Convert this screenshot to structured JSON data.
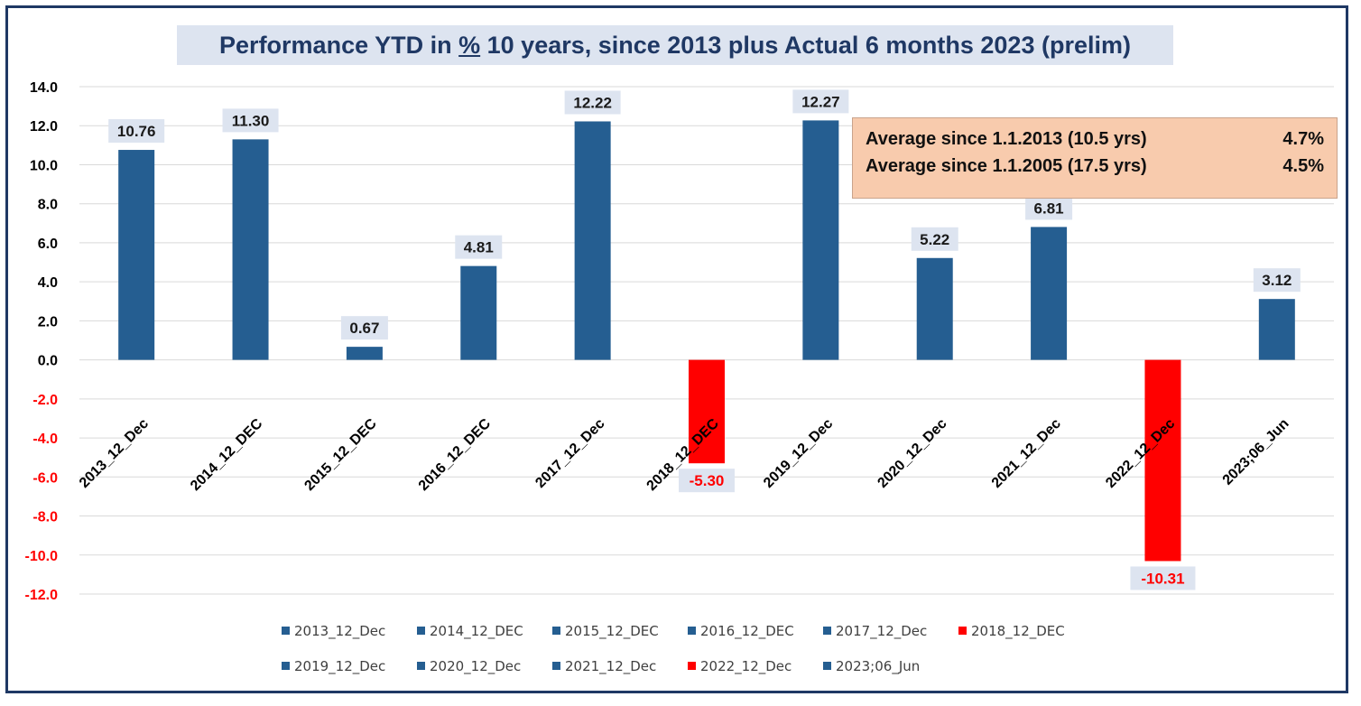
{
  "chart_data": {
    "type": "bar",
    "title_parts": [
      "Performance YTD in ",
      "%",
      " 10 years, since 2013 plus Actual 6 months 2023 (prelim)"
    ],
    "categories": [
      "2013_12_Dec",
      "2014_12_DEC",
      "2015_12_DEC",
      "2016_12_DEC",
      "2017_12_Dec",
      "2018_12_DEC",
      "2019_12_Dec",
      "2020_12_Dec",
      "2021_12_Dec",
      "2022_12_Dec",
      "2023;06_Jun"
    ],
    "values": [
      10.76,
      11.3,
      0.67,
      4.81,
      12.22,
      -5.3,
      12.27,
      5.22,
      6.81,
      -10.31,
      3.12
    ],
    "data_labels": [
      "10.76",
      "11.30",
      "0.67",
      "4.81",
      "12.22",
      "-5.30",
      "12.27",
      "5.22",
      "6.81",
      "-10.31",
      "3.12"
    ],
    "y_ticks": [
      "14.0",
      "12.0",
      "10.0",
      "8.0",
      "6.0",
      "4.0",
      "2.0",
      "0.0",
      "-2.0",
      "-4.0",
      "-6.0",
      "-8.0",
      "-10.0",
      "-12.0"
    ],
    "ylim": [
      -12,
      14
    ],
    "grid": true,
    "legend_position": "bottom",
    "colors": {
      "positive": "#255e91",
      "negative": "#ff0000",
      "positive_label_text": "#1a1a1a",
      "negative_label_text": "#ff0000",
      "label_background": "#dde4f0",
      "tick_positive": "#000000",
      "tick_negative": "#ff0000"
    }
  },
  "averages": [
    {
      "label": "Average since 1.1.2013 (10.5 yrs)",
      "value": "4.7%"
    },
    {
      "label": "Average since 1.1.2005 (17.5 yrs)",
      "value": "4.5%"
    }
  ]
}
